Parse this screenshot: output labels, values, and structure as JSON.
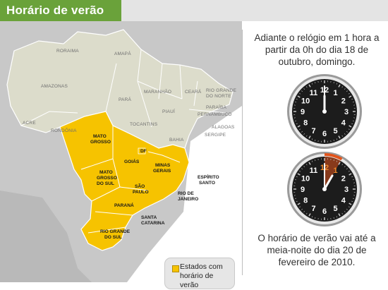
{
  "header": {
    "title": "Horário de verão"
  },
  "map": {
    "states": [
      "RORAIMA",
      "AMAPÁ",
      "AMAZONAS",
      "PARÁ",
      "MARANHÃO",
      "CEARÁ",
      "RIO GRANDE",
      "DO NORTE",
      "PARAÍBA",
      "PERNAMBUCO",
      "PIAUÍ",
      "ALAGOAS",
      "SERGIPE",
      "ACRE",
      "RONDÔNIA",
      "TOCANTINS",
      "BAHIA"
    ],
    "dst_states": [
      "MATO",
      "GROSSO",
      "DF",
      "GOIÁS",
      "MINAS",
      "GERAIS",
      "MATO",
      "GROSSO",
      "DO SUL",
      "SÃO",
      "PAULO",
      "PARANÁ",
      "RIO GRANDE",
      "DO SUL"
    ],
    "coastal_states": [
      "ESPÍRITO",
      "SANTO",
      "RIO DE",
      "JANEIRO",
      "SANTA",
      "CATARINA"
    ]
  },
  "legend": {
    "label": "Estados com horário de verão",
    "color": "#f6c300"
  },
  "info": {
    "top_text": "Adiante o relógio em 1 hora a partir da 0h do dia 18 de outubro, domingo.",
    "bottom_text": "O horário de verão vai até a meia-noite do dia 20 de fevereiro de 2010."
  },
  "clocks": [
    {
      "name": "clock-midnight",
      "hour": 0,
      "minute": 0,
      "numbers": [
        "12",
        "1",
        "2",
        "3",
        "4",
        "5",
        "6",
        "7",
        "8",
        "9",
        "10",
        "11"
      ],
      "highlight": false
    },
    {
      "name": "clock-one-am",
      "hour": 1,
      "minute": 0,
      "numbers": [
        "12",
        "1",
        "2",
        "3",
        "4",
        "5",
        "6",
        "7",
        "8",
        "9",
        "10",
        "11"
      ],
      "highlight": true,
      "highlight_color": "#e2541b"
    }
  ],
  "colors": {
    "brand_green": "#6aa23a",
    "dst_yellow": "#f6c300",
    "land": "#d9d9c9",
    "sea": "#bfbfbf"
  }
}
